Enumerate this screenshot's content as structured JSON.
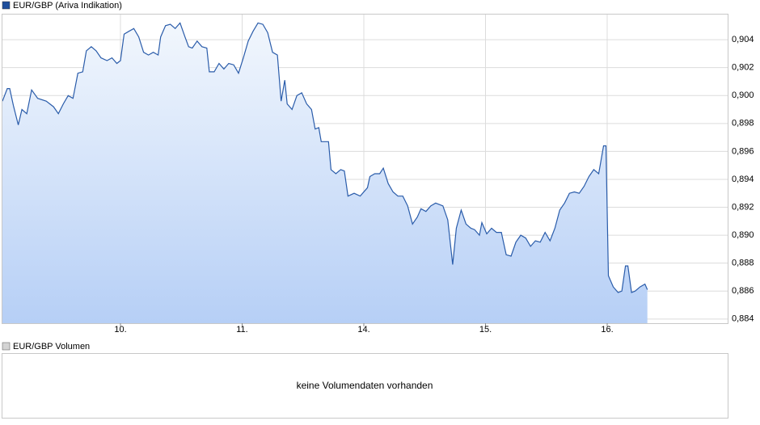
{
  "chart_data": {
    "type": "area",
    "x": [
      0.03,
      0.07,
      0.09,
      0.12,
      0.16,
      0.19,
      0.23,
      0.27,
      0.32,
      0.39,
      0.45,
      0.49,
      0.53,
      0.57,
      0.61,
      0.65,
      0.69,
      0.72,
      0.76,
      0.8,
      0.84,
      0.89,
      0.93,
      0.97,
      1.0,
      1.03,
      1.07,
      1.11,
      1.15,
      1.19,
      1.23,
      1.27,
      1.31,
      1.33,
      1.37,
      1.41,
      1.45,
      1.49,
      1.53,
      1.56,
      1.59,
      1.63,
      1.67,
      1.71,
      1.73,
      1.77,
      1.81,
      1.85,
      1.89,
      1.93,
      1.97,
      2.01,
      2.05,
      2.09,
      2.13,
      2.17,
      2.21,
      2.25,
      2.29,
      2.32,
      2.35,
      2.37,
      2.41,
      2.45,
      2.49,
      2.53,
      2.57,
      2.6,
      2.63,
      2.65,
      2.71,
      2.73,
      2.77,
      2.81,
      2.84,
      2.87,
      2.92,
      2.97,
      3.03,
      3.05,
      3.09,
      3.13,
      3.16,
      3.2,
      3.24,
      3.28,
      3.32,
      3.36,
      3.4,
      3.44,
      3.47,
      3.51,
      3.55,
      3.59,
      3.65,
      3.69,
      3.73,
      3.76,
      3.8,
      3.84,
      3.88,
      3.91,
      3.95,
      3.97,
      4.01,
      4.05,
      4.09,
      4.13,
      4.17,
      4.21,
      4.25,
      4.29,
      4.33,
      4.37,
      4.41,
      4.45,
      4.49,
      4.53,
      4.57,
      4.61,
      4.65,
      4.69,
      4.73,
      4.77,
      4.81,
      4.85,
      4.89,
      4.93,
      4.97,
      4.99,
      5.01,
      5.05,
      5.09,
      5.12,
      5.15,
      5.17,
      5.2,
      5.23,
      5.27,
      5.31,
      5.33
    ],
    "series": [
      {
        "name": "EUR/GBP (Ariva Indikation)",
        "color": "#2a5caa",
        "values": [
          0.8996,
          0.9005,
          0.9005,
          0.8993,
          0.8979,
          0.899,
          0.8987,
          0.9004,
          0.8998,
          0.8996,
          0.8992,
          0.8987,
          0.8994,
          0.9,
          0.8998,
          0.9016,
          0.9017,
          0.9032,
          0.9035,
          0.9032,
          0.9027,
          0.9025,
          0.9027,
          0.9023,
          0.9025,
          0.9044,
          0.9046,
          0.9048,
          0.9042,
          0.9031,
          0.9029,
          0.9031,
          0.9029,
          0.9042,
          0.905,
          0.9051,
          0.9048,
          0.9052,
          0.9042,
          0.9035,
          0.9034,
          0.9039,
          0.9035,
          0.9034,
          0.9017,
          0.9017,
          0.9023,
          0.9019,
          0.9023,
          0.9022,
          0.9016,
          0.9027,
          0.9039,
          0.9046,
          0.9052,
          0.9051,
          0.9045,
          0.9031,
          0.9029,
          0.8996,
          0.9011,
          0.8994,
          0.899,
          0.9,
          0.9002,
          0.8994,
          0.899,
          0.8976,
          0.8977,
          0.8967,
          0.8967,
          0.8947,
          0.8944,
          0.8947,
          0.8946,
          0.8928,
          0.893,
          0.8928,
          0.8934,
          0.8942,
          0.8944,
          0.8944,
          0.8948,
          0.8937,
          0.8931,
          0.8928,
          0.8928,
          0.8921,
          0.8908,
          0.8913,
          0.8919,
          0.8917,
          0.8921,
          0.8923,
          0.8921,
          0.8911,
          0.8879,
          0.8905,
          0.8918,
          0.8908,
          0.8905,
          0.8904,
          0.89,
          0.8909,
          0.8901,
          0.8905,
          0.8902,
          0.8902,
          0.8886,
          0.8885,
          0.8895,
          0.89,
          0.8898,
          0.8892,
          0.8896,
          0.8895,
          0.8902,
          0.8896,
          0.8905,
          0.8918,
          0.8923,
          0.893,
          0.8931,
          0.893,
          0.8935,
          0.8942,
          0.8947,
          0.8944,
          0.8964,
          0.8964,
          0.8871,
          0.8863,
          0.8859,
          0.886,
          0.8878,
          0.8878,
          0.8859,
          0.886,
          0.8863,
          0.8865,
          0.8861
        ]
      }
    ],
    "xlim": [
      0.03,
      5.99
    ],
    "xticks": [
      {
        "value": 1,
        "label": "10."
      },
      {
        "value": 2,
        "label": "11."
      },
      {
        "value": 3,
        "label": "14."
      },
      {
        "value": 4,
        "label": "15."
      },
      {
        "value": 5,
        "label": "16."
      }
    ],
    "ylim": [
      0.8837,
      0.9058
    ],
    "yticks": [
      {
        "value": 0.884,
        "label": "0,884"
      },
      {
        "value": 0.886,
        "label": "0,886"
      },
      {
        "value": 0.888,
        "label": "0,888"
      },
      {
        "value": 0.89,
        "label": "0,890"
      },
      {
        "value": 0.892,
        "label": "0,892"
      },
      {
        "value": 0.894,
        "label": "0,894"
      },
      {
        "value": 0.896,
        "label": "0,896"
      },
      {
        "value": 0.898,
        "label": "0,898"
      },
      {
        "value": 0.9,
        "label": "0,900"
      },
      {
        "value": 0.902,
        "label": "0,902"
      },
      {
        "value": 0.904,
        "label": "0,904"
      }
    ],
    "grid": true
  },
  "volume_panel": {
    "legend": "EUR/GBP Volumen",
    "message": "keine Volumendaten vorhanden"
  }
}
